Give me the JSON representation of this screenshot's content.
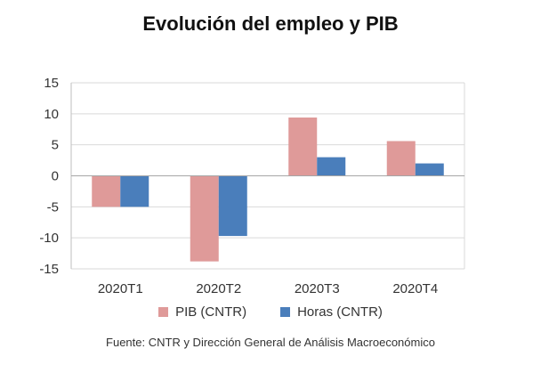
{
  "chart_data": {
    "type": "bar",
    "title": "Evolución del empleo y PIB",
    "categories": [
      "2020T1",
      "2020T2",
      "2020T3",
      "2020T4"
    ],
    "series": [
      {
        "name": "PIB (CNTR)",
        "color": "#df9a99",
        "values": [
          -5.0,
          -13.8,
          9.4,
          5.6
        ]
      },
      {
        "name": "Horas (CNTR)",
        "color": "#4a7ebb",
        "values": [
          -5.0,
          -9.7,
          3.0,
          2.0
        ]
      }
    ],
    "ylim": [
      -15,
      15
    ],
    "yticks": [
      "15",
      "10",
      "5",
      "0",
      "-5",
      "-10",
      "-15"
    ],
    "ytick_values": [
      15,
      10,
      5,
      0,
      -5,
      -10,
      -15
    ],
    "grid": true,
    "legend_position": "bottom",
    "source": "Fuente: CNTR y Dirección General de Análisis Macroeconómico"
  }
}
